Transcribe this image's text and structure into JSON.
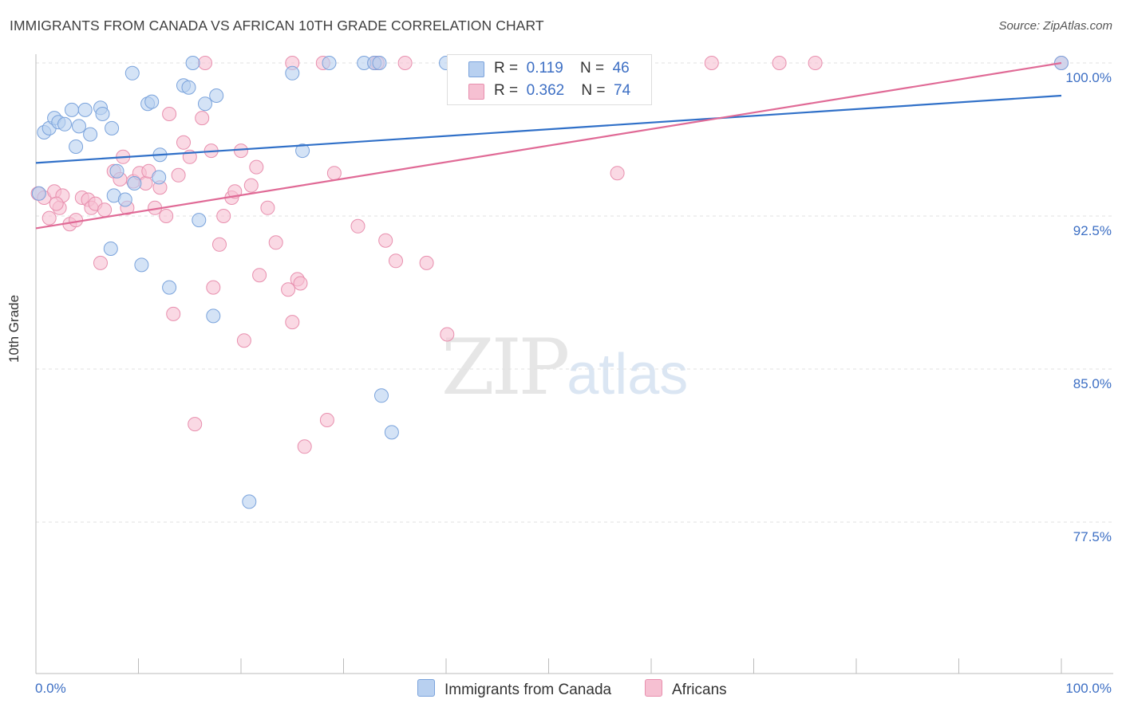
{
  "header": {
    "title": "IMMIGRANTS FROM CANADA VS AFRICAN 10TH GRADE CORRELATION CHART",
    "source": "Source: ZipAtlas.com"
  },
  "watermark": {
    "zip": "ZIP",
    "atlas": "atlas"
  },
  "legend": {
    "rows": [
      {
        "r_label": "R =",
        "r_value": "0.119",
        "n_label": "N =",
        "n_value": "46"
      },
      {
        "r_label": "R =",
        "r_value": "0.362",
        "n_label": "N =",
        "n_value": "74"
      }
    ]
  },
  "bottom_legend": {
    "series0": "Immigrants from Canada",
    "series1": "Africans"
  },
  "colors": {
    "blue_fill": "#b8d0f0",
    "blue_stroke": "#7aa3dc",
    "blue_line": "#3070c8",
    "pink_fill": "#f6c0d2",
    "pink_stroke": "#e88fae",
    "pink_line": "#e06a96",
    "tick_text": "#3d6fc4",
    "grid": "#e2e2e2"
  },
  "chart_data": {
    "type": "scatter",
    "title": "IMMIGRANTS FROM CANADA VS AFRICAN 10TH GRADE CORRELATION CHART",
    "xlabel": "",
    "ylabel": "10th Grade",
    "xlim": [
      0,
      100
    ],
    "ylim": [
      70,
      101
    ],
    "x_tick_labels": [
      "0.0%",
      "100.0%"
    ],
    "y_ticks": [
      77.5,
      85.0,
      92.5,
      100.0
    ],
    "y_tick_labels": [
      "77.5%",
      "85.0%",
      "92.5%",
      "100.0%"
    ],
    "grid": true,
    "legend_position": "top-center",
    "series": [
      {
        "name": "Immigrants from Canada",
        "r": 0.119,
        "n": 46,
        "trend": [
          [
            0,
            95.1
          ],
          [
            100,
            98.4
          ]
        ],
        "points": [
          [
            0.8,
            96.6
          ],
          [
            1.3,
            96.8
          ],
          [
            1.8,
            97.3
          ],
          [
            2.2,
            97.1
          ],
          [
            2.8,
            97.0
          ],
          [
            3.5,
            97.7
          ],
          [
            3.9,
            95.9
          ],
          [
            4.2,
            96.9
          ],
          [
            4.8,
            97.7
          ],
          [
            5.3,
            96.5
          ],
          [
            6.3,
            97.8
          ],
          [
            6.5,
            97.5
          ],
          [
            7.4,
            96.8
          ],
          [
            7.6,
            93.5
          ],
          [
            7.9,
            94.7
          ],
          [
            8.7,
            93.3
          ],
          [
            9.4,
            99.5
          ],
          [
            9.6,
            94.1
          ],
          [
            10.3,
            90.1
          ],
          [
            10.9,
            98.0
          ],
          [
            11.3,
            98.1
          ],
          [
            12.0,
            94.4
          ],
          [
            12.1,
            95.5
          ],
          [
            13.0,
            89.0
          ],
          [
            14.4,
            98.9
          ],
          [
            14.9,
            98.8
          ],
          [
            15.3,
            100.0
          ],
          [
            15.9,
            92.3
          ],
          [
            16.5,
            98.0
          ],
          [
            17.3,
            87.6
          ],
          [
            17.6,
            98.4
          ],
          [
            20.8,
            78.5
          ],
          [
            25.0,
            99.5
          ],
          [
            26.0,
            95.7
          ],
          [
            28.6,
            100.0
          ],
          [
            32.0,
            100.0
          ],
          [
            33.0,
            100.0
          ],
          [
            33.5,
            100.0
          ],
          [
            33.7,
            83.7
          ],
          [
            34.7,
            81.9
          ],
          [
            40.0,
            100.0
          ],
          [
            41.0,
            100.0
          ],
          [
            46.5,
            100.0
          ],
          [
            7.3,
            90.9
          ],
          [
            0.3,
            93.6
          ],
          [
            100.0,
            100.0
          ]
        ]
      },
      {
        "name": "Africans",
        "r": 0.362,
        "n": 74,
        "trend": [
          [
            0,
            91.9
          ],
          [
            100,
            100.0
          ]
        ],
        "points": [
          [
            0.2,
            93.6
          ],
          [
            0.8,
            93.4
          ],
          [
            1.3,
            92.4
          ],
          [
            1.8,
            93.7
          ],
          [
            2.3,
            92.9
          ],
          [
            2.6,
            93.5
          ],
          [
            3.3,
            92.1
          ],
          [
            3.9,
            92.3
          ],
          [
            4.5,
            93.4
          ],
          [
            5.1,
            93.3
          ],
          [
            5.4,
            92.9
          ],
          [
            5.8,
            93.1
          ],
          [
            6.3,
            90.2
          ],
          [
            6.7,
            92.8
          ],
          [
            7.6,
            94.7
          ],
          [
            8.2,
            94.3
          ],
          [
            8.5,
            95.4
          ],
          [
            8.9,
            92.9
          ],
          [
            9.5,
            94.2
          ],
          [
            10.1,
            94.6
          ],
          [
            10.7,
            94.1
          ],
          [
            11.0,
            94.7
          ],
          [
            11.6,
            92.9
          ],
          [
            12.1,
            93.9
          ],
          [
            12.7,
            92.5
          ],
          [
            13.0,
            97.5
          ],
          [
            13.4,
            87.7
          ],
          [
            13.9,
            94.5
          ],
          [
            14.4,
            96.1
          ],
          [
            15.0,
            95.4
          ],
          [
            15.5,
            82.3
          ],
          [
            16.2,
            97.3
          ],
          [
            17.1,
            95.7
          ],
          [
            17.3,
            89.0
          ],
          [
            17.9,
            91.1
          ],
          [
            18.3,
            92.5
          ],
          [
            19.1,
            93.4
          ],
          [
            19.4,
            93.7
          ],
          [
            20.0,
            95.7
          ],
          [
            20.3,
            86.4
          ],
          [
            21.0,
            94.0
          ],
          [
            21.5,
            94.9
          ],
          [
            21.8,
            89.6
          ],
          [
            22.6,
            92.9
          ],
          [
            23.4,
            91.2
          ],
          [
            24.6,
            88.9
          ],
          [
            25.0,
            87.3
          ],
          [
            25.5,
            89.4
          ],
          [
            25.8,
            89.2
          ],
          [
            26.2,
            81.2
          ],
          [
            28.4,
            82.5
          ],
          [
            29.1,
            94.6
          ],
          [
            31.4,
            92.0
          ],
          [
            33.3,
            100.0
          ],
          [
            34.1,
            91.3
          ],
          [
            35.1,
            90.3
          ],
          [
            38.1,
            90.2
          ],
          [
            40.1,
            86.7
          ],
          [
            41.0,
            100.0
          ],
          [
            42.5,
            100.0
          ],
          [
            56.7,
            94.6
          ],
          [
            65.9,
            100.0
          ],
          [
            72.5,
            100.0
          ],
          [
            76.0,
            100.0
          ],
          [
            16.5,
            100.0
          ],
          [
            25.0,
            100.0
          ],
          [
            33.0,
            100.0
          ],
          [
            44.0,
            100.0
          ],
          [
            48.0,
            100.0
          ],
          [
            53.0,
            100.0
          ],
          [
            100.0,
            100.0
          ],
          [
            36.0,
            100.0
          ],
          [
            28.0,
            100.0
          ],
          [
            2.0,
            93.1
          ]
        ]
      }
    ]
  }
}
